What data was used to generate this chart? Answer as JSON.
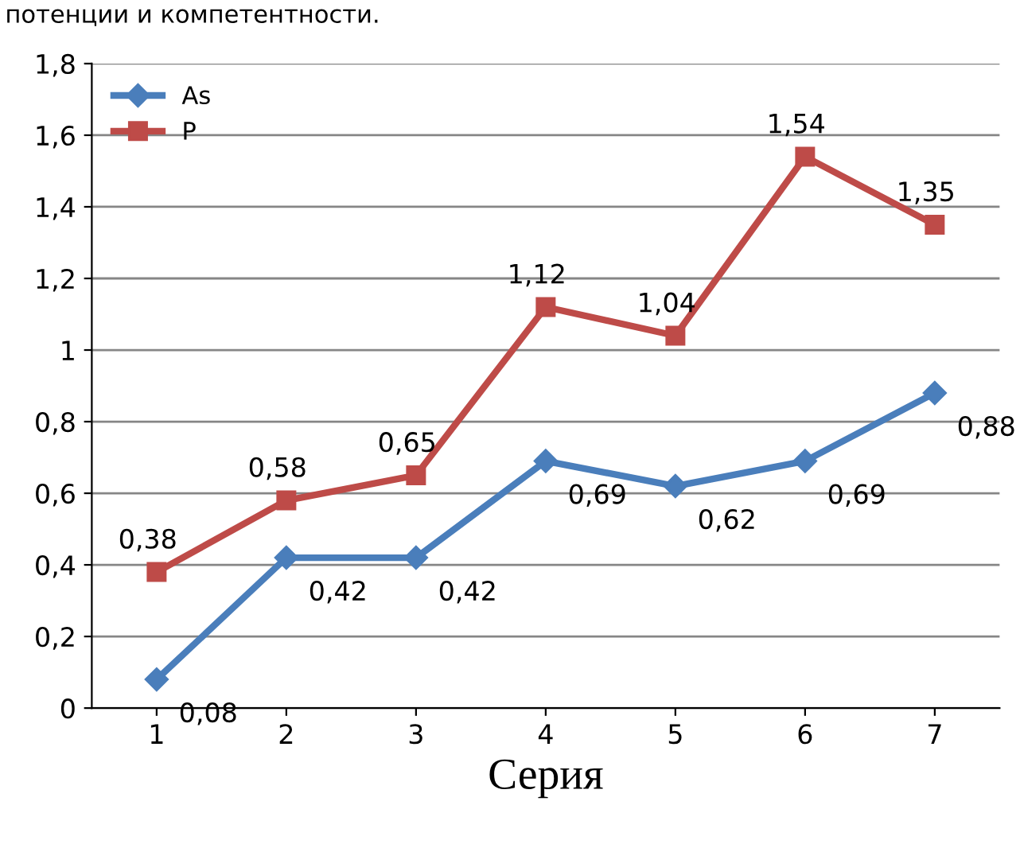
{
  "chart_data": {
    "type": "line",
    "title": "потенции и компетентности.",
    "xlabel": "Серия",
    "categories": [
      "1",
      "2",
      "3",
      "4",
      "5",
      "6",
      "7"
    ],
    "series": [
      {
        "name": "As",
        "color": "#4a7ebb",
        "marker": "diamond",
        "values": [
          0.08,
          0.42,
          0.42,
          0.69,
          0.62,
          0.69,
          0.88
        ],
        "value_labels": [
          "0,08",
          "0,42",
          "0,42",
          "0,69",
          "0,62",
          "0,69",
          "0,88"
        ]
      },
      {
        "name": "P",
        "color": "#be4b48",
        "marker": "square",
        "values": [
          0.38,
          0.58,
          0.65,
          1.12,
          1.04,
          1.54,
          1.35
        ],
        "value_labels": [
          "0,38",
          "0,58",
          "0,65",
          "1,12",
          "1,04",
          "1,54",
          "1,35"
        ]
      }
    ],
    "ylim": [
      0,
      1.8
    ],
    "yticks": [
      0,
      {
        "value": 0.2,
        "label": "0,2"
      },
      {
        "value": 0.4,
        "label": "0,4"
      },
      {
        "value": 0.6,
        "label": "0,6"
      },
      {
        "value": 0.8,
        "label": "0,8"
      },
      1,
      {
        "value": 1.2,
        "label": "1,2"
      },
      {
        "value": 1.4,
        "label": "1,4"
      },
      {
        "value": 1.6,
        "label": "1,6"
      },
      {
        "value": 1.8,
        "label": "1,8"
      }
    ],
    "grid": "y",
    "legend": "top left",
    "line_style": "solid"
  }
}
